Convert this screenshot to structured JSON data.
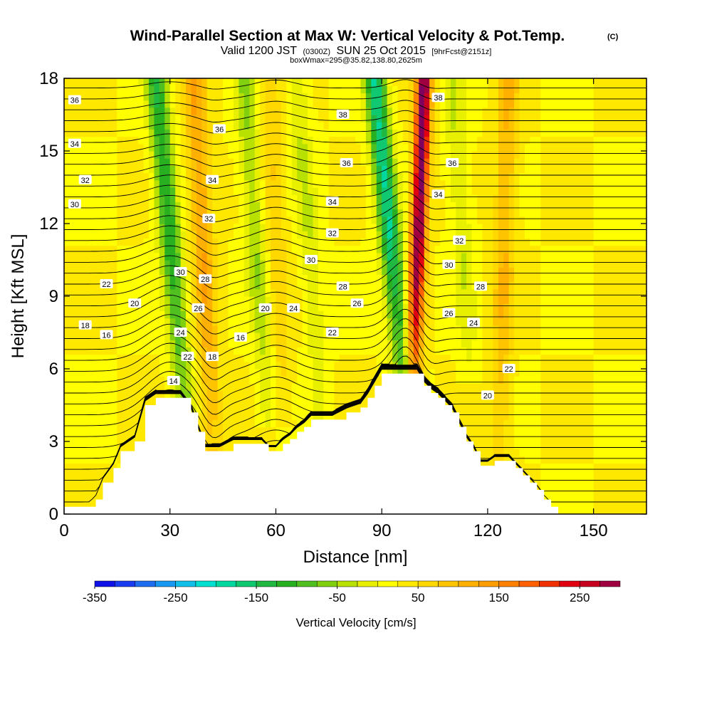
{
  "chart_data": {
    "type": "heatmap",
    "title": {
      "main": "Wind-Parallel Section at Max W: Vertical Velocity & Pot.Temp.",
      "units": "(C)",
      "valid_prefix": "Valid 1200 JST",
      "valid_utc": "(0300Z)",
      "valid_date": "SUN 25 Oct 2015",
      "forecast": "[9hrFcst@2151z]",
      "box": "boxWmax=295@35.82,138.80,2625m"
    },
    "xlabel": "Distance [nm]",
    "ylabel": "Height [Kft MSL]",
    "xlim": [
      0,
      165
    ],
    "ylim": [
      0,
      18
    ],
    "x_ticks": [
      "0",
      "30",
      "60",
      "90",
      "120",
      "150"
    ],
    "y_ticks": [
      "0",
      "3",
      "6",
      "9",
      "12",
      "15",
      "18"
    ],
    "x_tick_values": [
      0,
      30,
      60,
      90,
      120,
      150
    ],
    "y_tick_values": [
      0,
      3,
      6,
      9,
      12,
      15,
      18
    ],
    "colorbar": {
      "label": "Vertical Velocity [cm/s]",
      "min": -350,
      "max": 300,
      "step": 25,
      "tick_labels": [
        "-350",
        "-250",
        "-150",
        "-50",
        "50",
        "150",
        "250"
      ],
      "tick_values": [
        -350,
        -250,
        -150,
        -50,
        50,
        150,
        250
      ],
      "colors": [
        "#1010e8",
        "#1a3cf0",
        "#1e6cf0",
        "#1898f0",
        "#10c0e8",
        "#00e0d0",
        "#00d8a0",
        "#10c870",
        "#20b840",
        "#28b020",
        "#50c020",
        "#80d010",
        "#b8e000",
        "#e8f000",
        "#ffff00",
        "#ffe800",
        "#ffd800",
        "#ffc400",
        "#ffb000",
        "#ff9c00",
        "#ff8000",
        "#ff6000",
        "#f03000",
        "#e00010",
        "#c80020",
        "#a00040",
        "#800060",
        "#600080",
        "#400080"
      ]
    },
    "terrain_profile": {
      "x": [
        0,
        7,
        9,
        11,
        14,
        16,
        20,
        23,
        26,
        30,
        33,
        36,
        38,
        40,
        42,
        44,
        48,
        52,
        56,
        58,
        60,
        62,
        64,
        66,
        68,
        70,
        72,
        76,
        80,
        84,
        86,
        88,
        90,
        92,
        94,
        96,
        98,
        100,
        102,
        104,
        106,
        108,
        110,
        112,
        114,
        116,
        118,
        120,
        122,
        124,
        126,
        128,
        130,
        132,
        134,
        136,
        138,
        140,
        165
      ],
      "y": [
        0.3,
        0.3,
        0.6,
        1.3,
        1.9,
        2.6,
        3.0,
        4.5,
        4.8,
        4.8,
        4.8,
        4.2,
        3.4,
        2.6,
        2.6,
        2.6,
        2.9,
        2.9,
        2.9,
        2.6,
        2.6,
        2.9,
        3.1,
        3.4,
        3.6,
        3.9,
        3.9,
        3.9,
        4.2,
        4.4,
        4.8,
        5.3,
        5.8,
        5.8,
        5.8,
        5.8,
        5.8,
        5.8,
        5.3,
        5.0,
        4.8,
        4.5,
        4.2,
        3.6,
        3.0,
        2.6,
        2.0,
        2.0,
        2.2,
        2.2,
        2.2,
        1.9,
        1.6,
        1.3,
        1.0,
        0.6,
        0.3,
        0.0,
        0.0
      ]
    },
    "vertical_velocity_features": [
      {
        "kind": "downdraft",
        "x_bottom": 34,
        "x_top": 26,
        "y_range": [
          4.8,
          18
        ],
        "peak": -150
      },
      {
        "kind": "updraft",
        "x_bottom": 42,
        "x_top": 37,
        "y_range": [
          3,
          18
        ],
        "peak": 100
      },
      {
        "kind": "downdraft",
        "x_bottom": 58,
        "x_top": 51,
        "y_range": [
          4,
          18
        ],
        "peak": -75
      },
      {
        "kind": "updraft",
        "x_bottom": 62,
        "x_top": 58,
        "y_range": [
          4,
          18
        ],
        "peak": 50
      },
      {
        "kind": "downdraft",
        "x_bottom": 73,
        "x_top": 66,
        "y_range": [
          4,
          18
        ],
        "peak": -50
      },
      {
        "kind": "downdraft",
        "x_bottom": 96,
        "x_top": 88,
        "y_range": [
          6,
          18
        ],
        "peak": -200
      },
      {
        "kind": "updraft",
        "x_bottom": 99,
        "x_top": 102,
        "y_range": [
          6,
          18
        ],
        "peak": 295
      },
      {
        "kind": "downdraft",
        "x_bottom": 115,
        "x_top": 110,
        "y_range": [
          6,
          18
        ],
        "peak": -50
      },
      {
        "kind": "updraft",
        "x_bottom": 123,
        "x_top": 126,
        "y_range": [
          2,
          18
        ],
        "peak": 75
      }
    ],
    "theta_contour_labels": [
      {
        "text": "36",
        "x": 3,
        "y": 17.1
      },
      {
        "text": "34",
        "x": 3,
        "y": 15.3
      },
      {
        "text": "32",
        "x": 6,
        "y": 13.8
      },
      {
        "text": "30",
        "x": 3,
        "y": 12.8
      },
      {
        "text": "22",
        "x": 12,
        "y": 9.5
      },
      {
        "text": "20",
        "x": 20,
        "y": 8.7
      },
      {
        "text": "18",
        "x": 6,
        "y": 7.8
      },
      {
        "text": "16",
        "x": 12,
        "y": 7.4
      },
      {
        "text": "36",
        "x": 44,
        "y": 15.9
      },
      {
        "text": "34",
        "x": 42,
        "y": 13.8
      },
      {
        "text": "32",
        "x": 41,
        "y": 12.2
      },
      {
        "text": "30",
        "x": 33,
        "y": 10.0
      },
      {
        "text": "28",
        "x": 40,
        "y": 9.7
      },
      {
        "text": "26",
        "x": 38,
        "y": 8.5
      },
      {
        "text": "24",
        "x": 33,
        "y": 7.5
      },
      {
        "text": "22",
        "x": 35,
        "y": 6.5
      },
      {
        "text": "18",
        "x": 42,
        "y": 6.5
      },
      {
        "text": "16",
        "x": 50,
        "y": 7.3
      },
      {
        "text": "14",
        "x": 31,
        "y": 5.5
      },
      {
        "text": "20",
        "x": 57,
        "y": 8.5
      },
      {
        "text": "24",
        "x": 65,
        "y": 8.5
      },
      {
        "text": "38",
        "x": 79,
        "y": 16.5
      },
      {
        "text": "36",
        "x": 80,
        "y": 14.5
      },
      {
        "text": "34",
        "x": 76,
        "y": 12.9
      },
      {
        "text": "32",
        "x": 76,
        "y": 11.6
      },
      {
        "text": "30",
        "x": 70,
        "y": 10.5
      },
      {
        "text": "28",
        "x": 79,
        "y": 9.4
      },
      {
        "text": "26",
        "x": 83,
        "y": 8.7
      },
      {
        "text": "22",
        "x": 76,
        "y": 7.5
      },
      {
        "text": "38",
        "x": 106,
        "y": 17.2
      },
      {
        "text": "36",
        "x": 110,
        "y": 14.5
      },
      {
        "text": "34",
        "x": 106,
        "y": 13.2
      },
      {
        "text": "32",
        "x": 112,
        "y": 11.3
      },
      {
        "text": "30",
        "x": 109,
        "y": 10.3
      },
      {
        "text": "28",
        "x": 118,
        "y": 9.4
      },
      {
        "text": "26",
        "x": 109,
        "y": 8.3
      },
      {
        "text": "24",
        "x": 116,
        "y": 7.9
      },
      {
        "text": "22",
        "x": 126,
        "y": 6.0
      },
      {
        "text": "20",
        "x": 120,
        "y": 4.9
      }
    ]
  }
}
